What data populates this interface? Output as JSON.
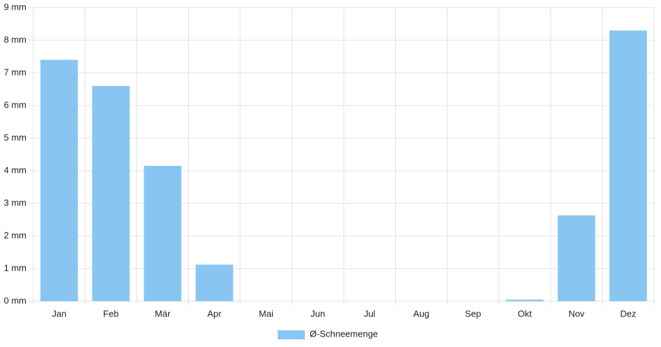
{
  "chart_data": {
    "type": "bar",
    "categories": [
      "Jan",
      "Feb",
      "Mär",
      "Apr",
      "Mai",
      "Jun",
      "Jul",
      "Aug",
      "Sep",
      "Okt",
      "Nov",
      "Dez"
    ],
    "series": [
      {
        "name": "Ø-Schneemenge",
        "color": "#88c6f1",
        "values": [
          7.4,
          6.6,
          4.15,
          1.12,
          0,
          0,
          0,
          0,
          0,
          0.05,
          2.63,
          8.3
        ]
      }
    ],
    "ylim": [
      0,
      9
    ],
    "yticks": [
      {
        "value": 0,
        "label": "0 mm"
      },
      {
        "value": 1,
        "label": "1 mm"
      },
      {
        "value": 2,
        "label": "2 mm"
      },
      {
        "value": 3,
        "label": "3 mm"
      },
      {
        "value": 4,
        "label": "4 mm"
      },
      {
        "value": 5,
        "label": "5 mm"
      },
      {
        "value": 6,
        "label": "6 mm"
      },
      {
        "value": 7,
        "label": "7 mm"
      },
      {
        "value": 8,
        "label": "8 mm"
      },
      {
        "value": 9,
        "label": "9 mm"
      }
    ],
    "grid": true,
    "legend": "bottom"
  }
}
